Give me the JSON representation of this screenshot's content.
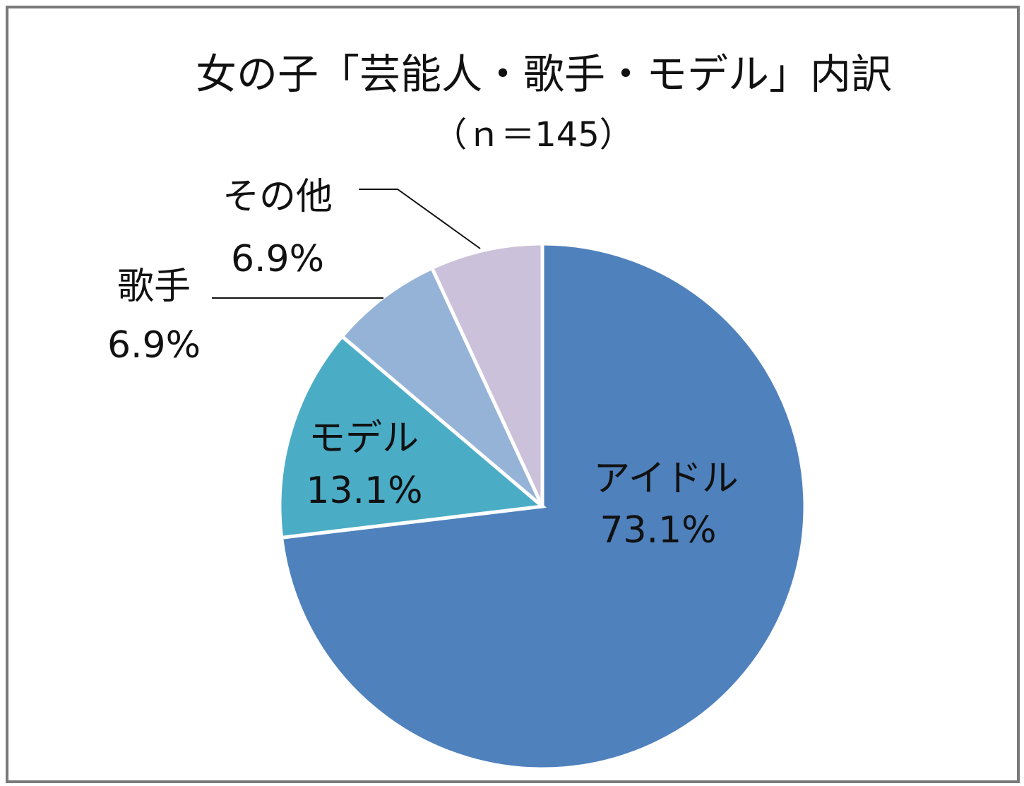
{
  "chart_data": {
    "type": "pie",
    "title": "女の子「芸能人・歌手・モデル」内訳",
    "subtitle": "（ｎ＝145）",
    "slices": [
      {
        "label": "アイドル",
        "value": 73.1,
        "value_label": "73.1%",
        "color": "#4f81bd"
      },
      {
        "label": "モデル",
        "value": 13.1,
        "value_label": "13.1%",
        "color": "#4bacc6"
      },
      {
        "label": "歌手",
        "value": 6.9,
        "value_label": "6.9%",
        "color": "#95b3d7"
      },
      {
        "label": "その他",
        "value": 6.9,
        "value_label": "6.9%",
        "color": "#ccc1da"
      }
    ],
    "start": "12 o'clock",
    "direction": "clockwise"
  }
}
